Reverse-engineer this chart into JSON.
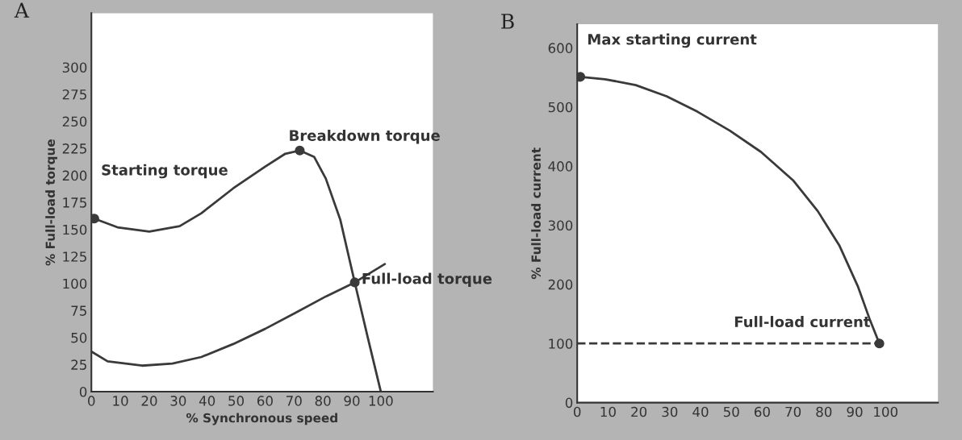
{
  "chart_data": [
    {
      "type": "line",
      "xlabel": "% Synchronous speed",
      "ylabel": "% Full-load torque",
      "xlim": [
        0,
        118
      ],
      "ylim": [
        0,
        350
      ],
      "xticks": [
        0,
        10,
        20,
        30,
        40,
        50,
        60,
        70,
        80,
        90,
        100
      ],
      "yticks": [
        0,
        25,
        50,
        75,
        100,
        125,
        150,
        175,
        200,
        225,
        250,
        275,
        300
      ],
      "grid": false,
      "legend": false,
      "series": [
        {
          "color": "#3a3a3a",
          "x": [
            1,
            9,
            20,
            30.5,
            38,
            49,
            60,
            67,
            72,
            77,
            81,
            86,
            91,
            95.5,
            100
          ],
          "values": [
            160,
            152,
            148,
            153,
            165,
            188,
            208,
            220,
            223,
            217,
            197,
            159,
            101,
            50,
            0
          ]
        },
        {
          "color": "#3a3a3a",
          "x": [
            0,
            5.6,
            17.5,
            28,
            38,
            49,
            60,
            70.6,
            81,
            91,
            101.4
          ],
          "values": [
            37,
            28,
            24,
            26,
            32,
            44,
            58,
            73,
            88,
            101,
            118
          ]
        },
        {
          "type": "scatter",
          "marker": "circle",
          "color": "#3a3a3a",
          "x": [
            1,
            72,
            91
          ],
          "values": [
            160,
            223,
            101
          ]
        }
      ],
      "annotations": [
        "A",
        {
          "text": "Starting torque",
          "x": 1,
          "y": 160
        },
        {
          "text": "Breakdown torque",
          "x": 72,
          "y": 223
        },
        {
          "text": "Full-load torque",
          "x": 91,
          "y": 101
        }
      ]
    },
    {
      "type": "line",
      "ylabel": "% Full-load current",
      "xlim": [
        0,
        117
      ],
      "ylim": [
        0,
        640
      ],
      "xticks": [
        0,
        10,
        20,
        30,
        40,
        50,
        60,
        70,
        80,
        90,
        100
      ],
      "yticks": [
        0,
        100,
        200,
        300,
        400,
        500,
        600
      ],
      "grid": false,
      "legend": false,
      "series": [
        {
          "color": "#3a3a3a",
          "x": [
            1,
            9,
            19,
            29,
            39,
            49.5,
            59.6,
            70,
            78,
            85,
            91,
            95,
            98
          ],
          "values": [
            551,
            547,
            537,
            518,
            492,
            460,
            424,
            376,
            324,
            266,
            197,
            139,
            100
          ]
        },
        {
          "color": "#3a3a3a",
          "line_style": "dashed",
          "x": [
            0,
            98
          ],
          "values": [
            100,
            100
          ]
        },
        {
          "type": "scatter",
          "marker": "circle",
          "color": "#3a3a3a",
          "x": [
            1,
            98
          ],
          "values": [
            551,
            100
          ]
        }
      ],
      "annotations": [
        "B",
        {
          "text": "Max starting current",
          "x": 1,
          "y": 551
        },
        {
          "text": "Full-load current",
          "x": 98,
          "y": 100
        }
      ]
    }
  ]
}
